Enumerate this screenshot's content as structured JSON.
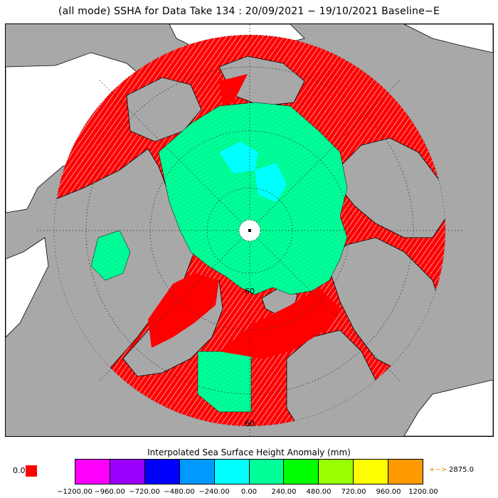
{
  "title": "(all mode) SSHA for Data Take 134 : 20/09/2021 − 19/10/2021 Baseline−E",
  "map": {
    "projection": "north-polar-stereographic",
    "lat_labels": [
      "60",
      "60"
    ],
    "colors": {
      "land": "#a8a8a8",
      "ocean_background": "#ffffff",
      "coastline": "#000000",
      "fill_red": "#ff0000",
      "fill_green": "#00ff99",
      "fill_cyan": "#00ffff",
      "graticule": "#333333"
    }
  },
  "colorbar": {
    "title": "Interpolated Sea Surface Height Anomaly (mm)",
    "zero_label": "0.0",
    "zero_color": "#ff0000",
    "over_arrow": "+−>",
    "over_value": "2875.0",
    "colors": [
      "#ff00ff",
      "#9900ff",
      "#0000ff",
      "#0099ff",
      "#00ffff",
      "#00ff99",
      "#00ff00",
      "#99ff00",
      "#ffff00",
      "#ff9900"
    ],
    "ticks": [
      "−1200.00",
      "−960.00",
      "−720.00",
      "−480.00",
      "−240.00",
      "0.00",
      "240.00",
      "480.00",
      "720.00",
      "960.00",
      "1200.00"
    ]
  }
}
